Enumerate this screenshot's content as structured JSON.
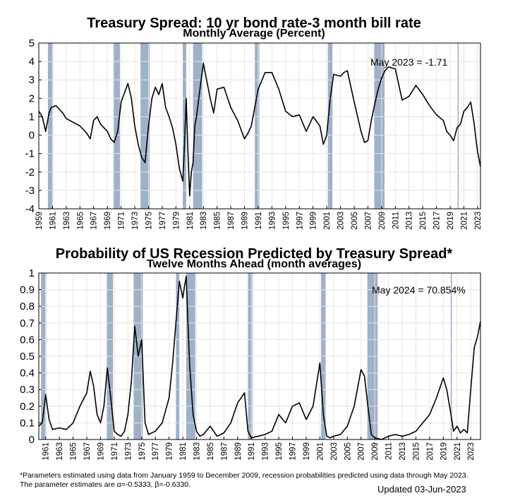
{
  "colors": {
    "recession": "#9fb1c8",
    "line": "#000000",
    "grid": "#e4e4e4",
    "axis": "#000000"
  },
  "recessions": [
    [
      1960.33,
      1961.08
    ],
    [
      1969.92,
      1970.83
    ],
    [
      1973.83,
      1975.17
    ],
    [
      1980.0,
      1980.5
    ],
    [
      1981.5,
      1982.83
    ],
    [
      1990.5,
      1991.17
    ],
    [
      2001.17,
      2001.83
    ],
    [
      2007.92,
      2009.42
    ],
    [
      2020.08,
      2020.25
    ]
  ],
  "chart_data": [
    {
      "type": "line",
      "title": "Treasury Spread: 10 yr bond rate-3 month bill rate",
      "subtitle": "Monthly Average (Percent)",
      "xlabel": "",
      "ylabel": "",
      "xlim": [
        1959,
        2023.42
      ],
      "ylim": [
        -4,
        5
      ],
      "grid": true,
      "x_ticks": [
        1959,
        1961,
        1963,
        1965,
        1967,
        1969,
        1971,
        1973,
        1975,
        1977,
        1979,
        1981,
        1983,
        1985,
        1987,
        1989,
        1991,
        1993,
        1995,
        1997,
        1999,
        2001,
        2003,
        2005,
        2007,
        2009,
        2011,
        2013,
        2015,
        2017,
        2019,
        2021,
        2023
      ],
      "y_ticks": [
        -4,
        -3,
        -2,
        -1,
        0,
        1,
        2,
        3,
        4,
        5
      ],
      "annotation": "May 2023 = -1.71",
      "series": [
        {
          "name": "Spread",
          "x": [
            1959.0,
            1959.5,
            1960.0,
            1960.5,
            1960.8,
            1961.5,
            1962.0,
            1962.5,
            1963.0,
            1964.0,
            1965.0,
            1966.0,
            1966.5,
            1967.0,
            1967.5,
            1968.0,
            1968.5,
            1969.0,
            1969.5,
            1970.0,
            1970.5,
            1971.0,
            1971.5,
            1972.0,
            1972.5,
            1973.0,
            1973.5,
            1974.0,
            1974.5,
            1975.0,
            1975.5,
            1976.0,
            1976.5,
            1977.0,
            1977.5,
            1978.0,
            1978.5,
            1979.0,
            1979.5,
            1980.0,
            1980.25,
            1980.5,
            1980.75,
            1981.0,
            1981.25,
            1981.5,
            1981.75,
            1982.0,
            1982.5,
            1983.0,
            1984.0,
            1984.5,
            1985.0,
            1986.0,
            1987.0,
            1988.0,
            1989.0,
            1989.5,
            1990.0,
            1990.5,
            1991.0,
            1992.0,
            1993.0,
            1994.0,
            1995.0,
            1996.0,
            1997.0,
            1998.0,
            1999.0,
            2000.0,
            2000.5,
            2001.0,
            2001.5,
            2002.0,
            2003.0,
            2003.5,
            2004.0,
            2005.0,
            2006.0,
            2006.5,
            2007.0,
            2007.5,
            2008.0,
            2008.5,
            2009.0,
            2009.5,
            2010.0,
            2011.0,
            2012.0,
            2013.0,
            2014.0,
            2015.0,
            2016.0,
            2017.0,
            2018.0,
            2018.5,
            2019.0,
            2019.5,
            2020.0,
            2020.5,
            2021.0,
            2021.5,
            2022.0,
            2022.5,
            2022.75,
            2023.0,
            2023.42
          ],
          "y": [
            1.3,
            1.0,
            0.2,
            1.2,
            1.5,
            1.6,
            1.4,
            1.2,
            0.9,
            0.7,
            0.5,
            0.1,
            -0.2,
            0.8,
            1.0,
            0.6,
            0.4,
            0.2,
            -0.2,
            -0.4,
            0.2,
            1.8,
            2.3,
            2.8,
            2.0,
            0.5,
            -0.5,
            -1.2,
            -1.5,
            0.5,
            2.0,
            2.6,
            2.2,
            2.8,
            1.5,
            1.0,
            0.4,
            -0.5,
            -1.8,
            -2.5,
            -0.5,
            2.0,
            -1.0,
            -3.3,
            -2.0,
            -1.5,
            0.5,
            1.0,
            2.5,
            3.9,
            2.0,
            1.2,
            2.5,
            2.6,
            1.5,
            0.8,
            -0.2,
            0.1,
            0.5,
            1.5,
            2.5,
            3.4,
            3.4,
            2.5,
            1.3,
            1.0,
            1.1,
            0.2,
            1.0,
            0.5,
            -0.5,
            0.0,
            2.0,
            3.3,
            3.2,
            3.4,
            3.5,
            1.8,
            0.2,
            -0.4,
            -0.3,
            0.8,
            1.7,
            2.5,
            3.1,
            3.5,
            3.7,
            3.6,
            1.9,
            2.1,
            2.7,
            2.2,
            1.6,
            1.1,
            0.8,
            0.2,
            0.0,
            -0.3,
            0.4,
            0.6,
            1.3,
            1.5,
            1.8,
            0.6,
            -0.2,
            -0.9,
            -1.71
          ]
        }
      ]
    },
    {
      "type": "line",
      "title": "Probability of US Recession Predicted by Treasury Spread*",
      "subtitle": "Twelve Months Ahead (month averages)",
      "xlabel": "",
      "ylabel": "",
      "xlim": [
        1960,
        2024.42
      ],
      "ylim": [
        0,
        1
      ],
      "grid": true,
      "x_ticks": [
        1961,
        1963,
        1965,
        1967,
        1969,
        1971,
        1973,
        1975,
        1977,
        1979,
        1981,
        1983,
        1985,
        1987,
        1989,
        1991,
        1993,
        1995,
        1997,
        1999,
        2001,
        2003,
        2005,
        2007,
        2009,
        2011,
        2013,
        2015,
        2017,
        2019,
        2021,
        2023
      ],
      "y_ticks": [
        0,
        0.1,
        0.2,
        0.3,
        0.4,
        0.5,
        0.6,
        0.7,
        0.8,
        0.9,
        1
      ],
      "annotation": "May 2024 = 70.854%",
      "series": [
        {
          "name": "Probability",
          "x": [
            1960.0,
            1960.5,
            1961.0,
            1961.5,
            1962.0,
            1963.0,
            1964.0,
            1965.0,
            1966.0,
            1967.0,
            1967.5,
            1968.0,
            1968.5,
            1969.0,
            1969.5,
            1970.0,
            1970.5,
            1971.0,
            1971.5,
            1972.0,
            1972.5,
            1973.0,
            1973.5,
            1974.0,
            1974.5,
            1975.0,
            1975.5,
            1976.0,
            1977.0,
            1978.0,
            1979.0,
            1979.5,
            1980.0,
            1980.5,
            1981.0,
            1981.25,
            1981.5,
            1981.75,
            1982.0,
            1982.25,
            1982.5,
            1983.0,
            1983.5,
            1984.0,
            1985.0,
            1986.0,
            1987.0,
            1988.0,
            1989.0,
            1990.0,
            1990.5,
            1991.0,
            1992.0,
            1993.0,
            1994.0,
            1995.0,
            1996.0,
            1997.0,
            1998.0,
            1999.0,
            2000.0,
            2001.0,
            2001.5,
            2002.0,
            2002.5,
            2003.0,
            2004.0,
            2005.0,
            2006.0,
            2007.0,
            2007.5,
            2008.0,
            2008.5,
            2009.0,
            2010.0,
            2011.0,
            2012.0,
            2013.0,
            2014.0,
            2015.0,
            2016.0,
            2017.0,
            2018.0,
            2019.0,
            2019.5,
            2020.0,
            2020.5,
            2021.0,
            2021.5,
            2022.0,
            2022.5,
            2023.0,
            2023.5,
            2024.0,
            2024.42
          ],
          "y": [
            0.08,
            0.1,
            0.27,
            0.12,
            0.06,
            0.07,
            0.06,
            0.1,
            0.2,
            0.28,
            0.41,
            0.32,
            0.15,
            0.1,
            0.2,
            0.43,
            0.25,
            0.05,
            0.03,
            0.02,
            0.05,
            0.15,
            0.35,
            0.68,
            0.5,
            0.6,
            0.1,
            0.03,
            0.05,
            0.1,
            0.25,
            0.45,
            0.7,
            0.95,
            0.85,
            0.92,
            0.98,
            0.7,
            0.45,
            0.3,
            0.15,
            0.05,
            0.02,
            0.03,
            0.08,
            0.02,
            0.04,
            0.1,
            0.22,
            0.28,
            0.05,
            0.01,
            0.02,
            0.03,
            0.05,
            0.15,
            0.1,
            0.2,
            0.22,
            0.12,
            0.2,
            0.46,
            0.15,
            0.02,
            0.01,
            0.02,
            0.03,
            0.08,
            0.2,
            0.42,
            0.38,
            0.2,
            0.03,
            0.01,
            0.0,
            0.02,
            0.03,
            0.02,
            0.03,
            0.05,
            0.1,
            0.15,
            0.25,
            0.37,
            0.3,
            0.18,
            0.05,
            0.08,
            0.04,
            0.06,
            0.04,
            0.3,
            0.55,
            0.62,
            0.71
          ]
        }
      ]
    }
  ],
  "footnotes": {
    "line1": "*Parameters estimated using data from January 1959 to December 2009, recession probabilities predicted using data through May 2023.",
    "line2": "The parameter estimates are α=-0.5333, β=-0.6330."
  },
  "updated": "Updated 03-Jun-2023"
}
